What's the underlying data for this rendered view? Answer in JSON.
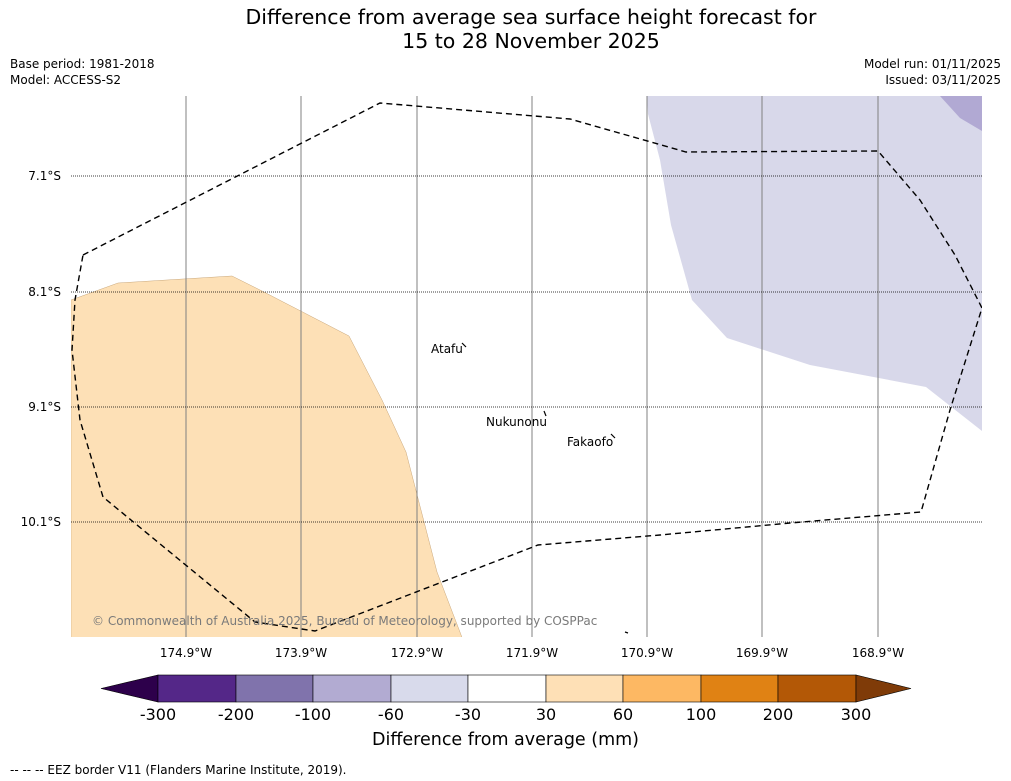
{
  "title": {
    "line1": "Difference from average sea surface height forecast for",
    "line2": "15 to 28 November 2025"
  },
  "meta": {
    "base_period": "Base period: 1981-2018",
    "model": "Model: ACCESS-S2",
    "model_run": "Model run: 01/11/2025",
    "issued": "Issued: 03/11/2025"
  },
  "map": {
    "latitudes": [
      "7.1°S",
      "8.1°S",
      "9.1°S",
      "10.1°S"
    ],
    "longitudes": [
      "174.9°W",
      "173.9°W",
      "172.9°W",
      "171.9°W",
      "170.9°W",
      "169.9°W",
      "168.9°W"
    ],
    "places": [
      "Atafu",
      "Nukunonu",
      "Fakaofo"
    ],
    "copyright": "© Commonwealth of Australia 2025, Bureau of Meteorology, supported by COSPPac",
    "region_colors": {
      "positive_30_60": "#fde0b6",
      "negative_30_60": "#d8d8ea",
      "negative_60_100": "#b1a9d3"
    }
  },
  "colorbar": {
    "ticks": [
      "-300",
      "-200",
      "-100",
      "-60",
      "-30",
      "30",
      "60",
      "100",
      "200",
      "300"
    ],
    "colors": [
      "#2d004b",
      "#542788",
      "#8073ac",
      "#b2abd2",
      "#d8daeb",
      "#ffffff",
      "#fee0b6",
      "#fdb863",
      "#e08214",
      "#b35806",
      "#7f3b08"
    ],
    "label": "Difference from average (mm)"
  },
  "footnote": "--  --  -- EEZ border V11 (Flanders Marine Institute, 2019)."
}
